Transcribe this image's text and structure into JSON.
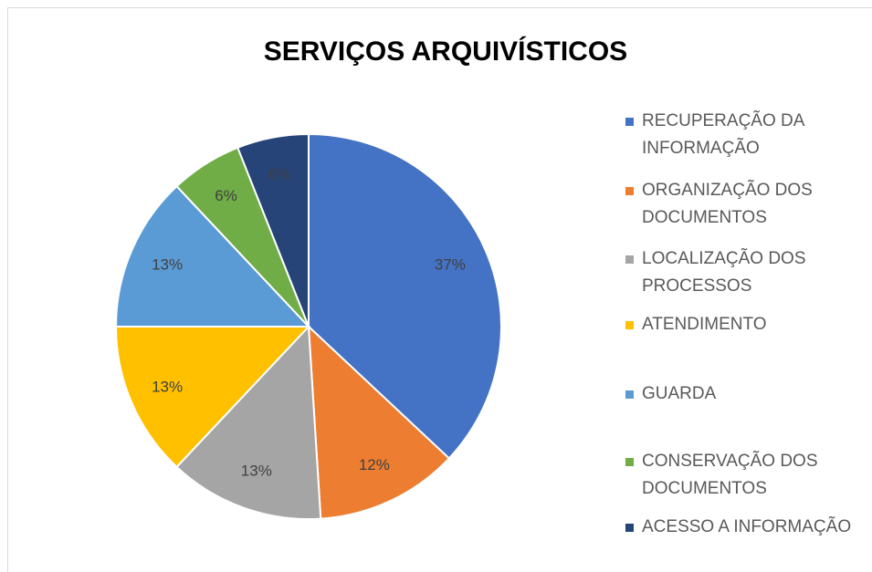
{
  "chart_data": {
    "type": "pie",
    "title": "SERVIÇOS ARQUIVÍSTICOS",
    "categories": [
      "RECUPERAÇÃO DA INFORMAÇÃO",
      "ORGANIZAÇÃO DOS DOCUMENTOS",
      "LOCALIZAÇÃO DOS PROCESSOS",
      "ATENDIMENTO",
      "GUARDA",
      "CONSERVAÇÃO DOS DOCUMENTOS",
      "ACESSO A INFORMAÇÃO"
    ],
    "values": [
      37,
      12,
      13,
      13,
      13,
      6,
      6
    ],
    "value_labels": [
      "37%",
      "12%",
      "13%",
      "13%",
      "13%",
      "6%",
      "6%"
    ],
    "colors": [
      "#4472c4",
      "#ed7d31",
      "#a5a5a5",
      "#ffc000",
      "#5b9bd5",
      "#70ad47",
      "#264478"
    ],
    "legend": "right"
  }
}
